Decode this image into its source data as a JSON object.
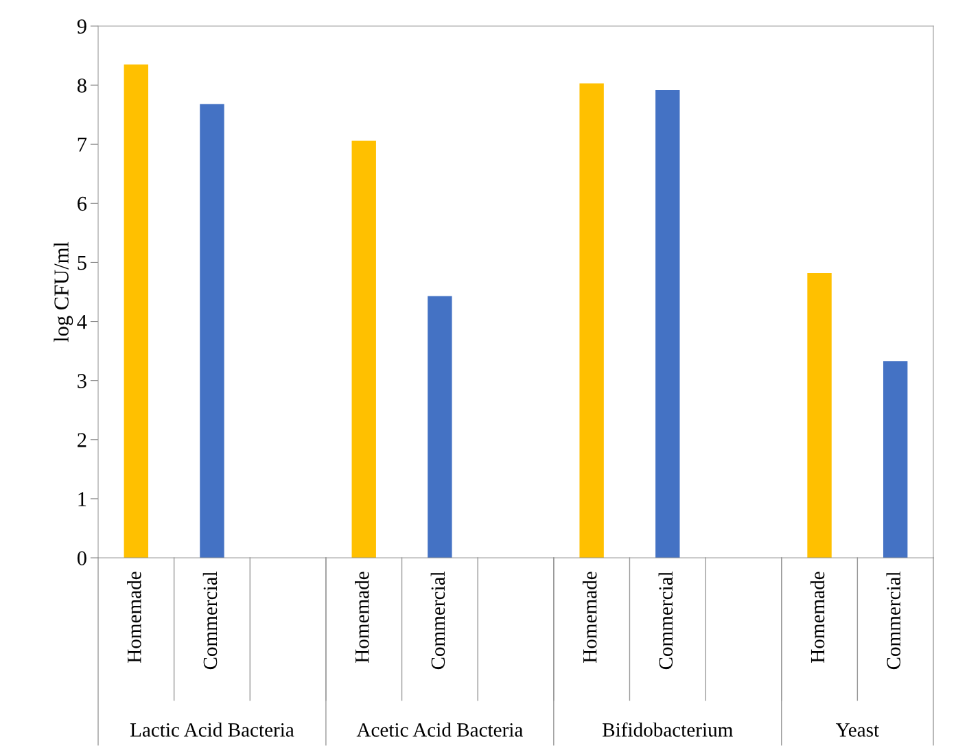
{
  "chart_data": {
    "type": "bar",
    "ylabel": "log CFU/ml",
    "categories": [
      "Homemade",
      "Commercial",
      null,
      "Homemade",
      "Commercial",
      null,
      "Homemade",
      "Commercial",
      null,
      "Homemade",
      "Commercial"
    ],
    "values": [
      8.35,
      7.68,
      null,
      7.06,
      4.43,
      null,
      8.03,
      7.92,
      null,
      4.82,
      3.33
    ],
    "colors": [
      "#ffc000",
      "#4472c4",
      null,
      "#ffc000",
      "#4472c4",
      null,
      "#ffc000",
      "#4472c4",
      null,
      "#ffc000",
      "#4472c4"
    ],
    "annotations": [
      "Lactic Acid Bacteria",
      "Acetic Acid Bacteria",
      "Bifidobacterium",
      "Yeast"
    ],
    "ylim": [
      0,
      9
    ],
    "yticks": [
      0,
      1,
      2,
      3,
      4,
      5,
      6,
      7,
      8,
      9
    ],
    "grid": false,
    "legend": false
  }
}
